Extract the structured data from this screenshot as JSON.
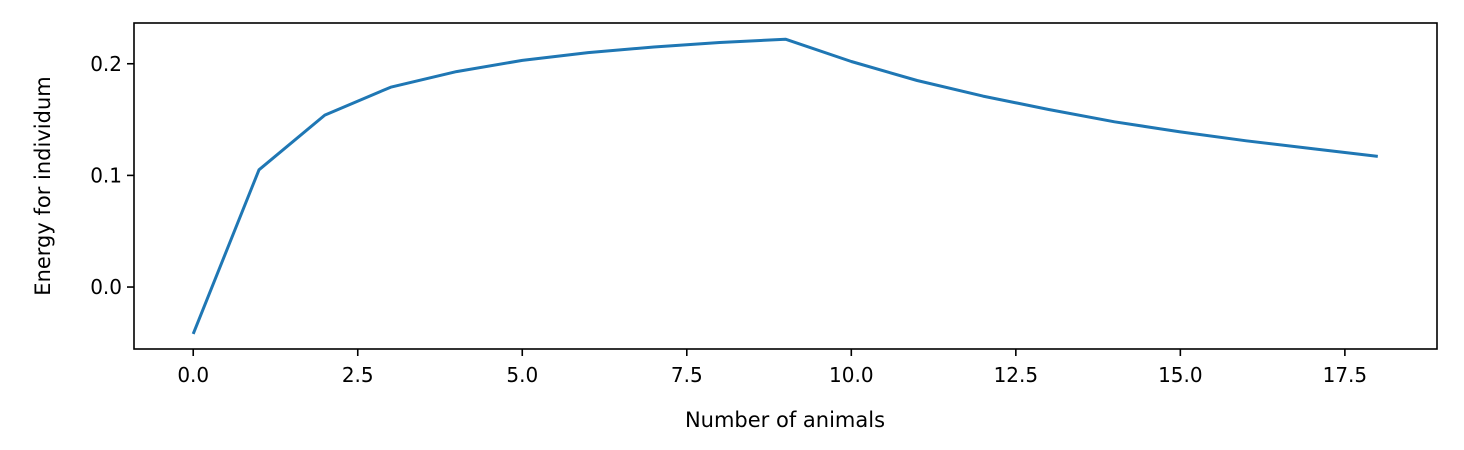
{
  "chart_data": {
    "type": "line",
    "title": "",
    "xlabel": "Number of animals",
    "ylabel": "Energy for individum",
    "xlim": [
      -0.9,
      18.9
    ],
    "ylim": [
      -0.0555,
      0.2365
    ],
    "x_ticks": [
      0.0,
      2.5,
      5.0,
      7.5,
      10.0,
      12.5,
      15.0,
      17.5
    ],
    "x_tick_labels": [
      "0.0",
      "2.5",
      "5.0",
      "7.5",
      "10.0",
      "12.5",
      "15.0",
      "17.5"
    ],
    "y_ticks": [
      0.0,
      0.1,
      0.2
    ],
    "y_tick_labels": [
      "0.0",
      "0.1",
      "0.2"
    ],
    "grid": false,
    "legend": "none",
    "series": [
      {
        "color": "#1f77b4",
        "x": [
          0,
          1,
          2,
          3,
          4,
          5,
          6,
          7,
          8,
          9,
          10,
          11,
          12,
          13,
          14,
          15,
          16,
          17,
          18
        ],
        "y": [
          -0.042,
          0.105,
          0.154,
          0.179,
          0.193,
          0.203,
          0.21,
          0.215,
          0.219,
          0.222,
          0.202,
          0.185,
          0.171,
          0.159,
          0.148,
          0.139,
          0.131,
          0.124,
          0.117
        ]
      }
    ]
  }
}
